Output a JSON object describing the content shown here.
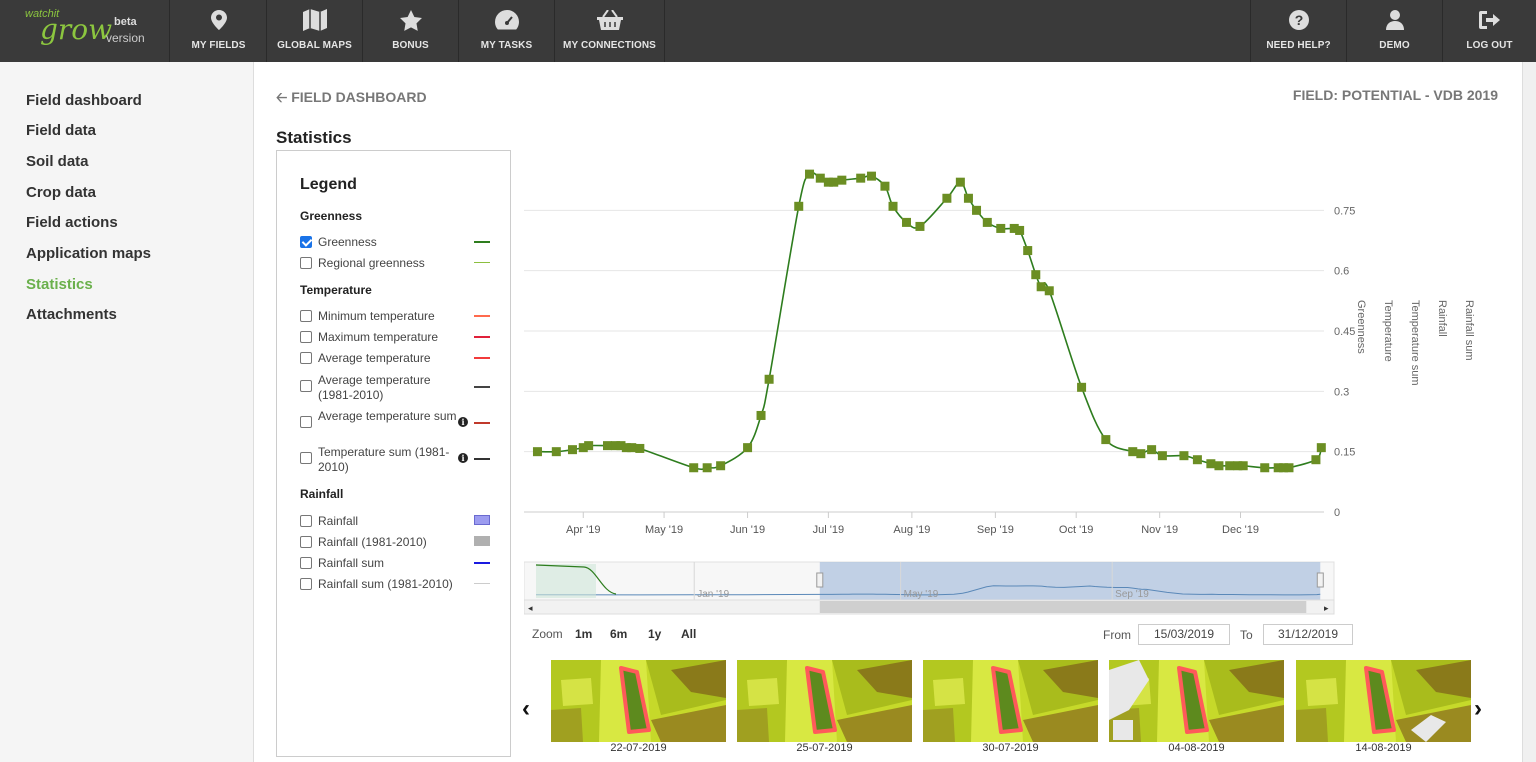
{
  "app": {
    "logo_small": "watchit",
    "logo_big": "grow",
    "beta": "beta",
    "version": "version"
  },
  "topnav": {
    "left": [
      {
        "label": "MY FIELDS",
        "icon": "map-marker-icon"
      },
      {
        "label": "GLOBAL MAPS",
        "icon": "map-icon"
      },
      {
        "label": "BONUS",
        "icon": "star-icon"
      },
      {
        "label": "MY TASKS",
        "icon": "dashboard-icon"
      },
      {
        "label": "MY CONNECTIONS",
        "icon": "basket-icon"
      }
    ],
    "right": [
      {
        "label": "NEED HELP?",
        "icon": "question-icon"
      },
      {
        "label": "DEMO",
        "icon": "user-icon"
      },
      {
        "label": "LOG OUT",
        "icon": "logout-icon"
      }
    ]
  },
  "sidebar": {
    "items": [
      {
        "label": "Field dashboard",
        "active": false
      },
      {
        "label": "Field data",
        "active": false
      },
      {
        "label": "Soil data",
        "active": false
      },
      {
        "label": "Crop data",
        "active": false
      },
      {
        "label": "Field actions",
        "active": false
      },
      {
        "label": "Application maps",
        "active": false
      },
      {
        "label": "Statistics",
        "active": true
      },
      {
        "label": "Attachments",
        "active": false
      }
    ]
  },
  "header": {
    "back_label": "FIELD DASHBOARD",
    "field": "FIELD: POTENTIAL - VDB 2019"
  },
  "stats_title": "Statistics",
  "legend": {
    "title": "Legend",
    "groups": [
      {
        "title": "Greenness",
        "items": [
          {
            "label": "Greenness",
            "checked": true,
            "color": "#2e7d1e"
          },
          {
            "label": "Regional greenness",
            "checked": false,
            "color": "#8cbf3f"
          }
        ]
      },
      {
        "title": "Temperature",
        "items": [
          {
            "label": "Minimum temperature",
            "checked": false,
            "color": "#ff6a4d"
          },
          {
            "label": "Maximum temperature",
            "checked": false,
            "color": "#e0203a"
          },
          {
            "label": "Average temperature",
            "checked": false,
            "color": "#f23b3b"
          },
          {
            "label": "Average temperature (1981-2010)",
            "checked": false,
            "color": "#444444"
          },
          {
            "label": "Average temperature sum",
            "checked": false,
            "color": "#c0392b",
            "info": true
          },
          {
            "label": "Temperature sum (1981-2010)",
            "checked": false,
            "color": "#333333",
            "info": true
          }
        ]
      },
      {
        "title": "Rainfall",
        "items": [
          {
            "label": "Rainfall",
            "checked": false,
            "color": "#9c9cf0"
          },
          {
            "label": "Rainfall (1981-2010)",
            "checked": false,
            "color": "#b0b0b0"
          },
          {
            "label": "Rainfall sum",
            "checked": false,
            "color": "#1a1ae0"
          },
          {
            "label": "Rainfall sum (1981-2010)",
            "checked": false,
            "color": "#cccccc"
          }
        ]
      }
    ]
  },
  "chart_data": {
    "type": "line",
    "title": "",
    "xlabel": "",
    "x_ticks": [
      "Apr '19",
      "May '19",
      "Jun '19",
      "Jul '19",
      "Aug '19",
      "Sep '19",
      "Oct '19",
      "Nov '19",
      "Dec '19"
    ],
    "y_ticks": [
      "0",
      "0.15",
      "0.3",
      "0.45",
      "0.6",
      "0.75"
    ],
    "ylim": [
      0,
      0.9
    ],
    "y_axis_titles": [
      "Greenness",
      "Temperature",
      "Temperature sum",
      "Rainfall",
      "Rainfall sum"
    ],
    "series": [
      {
        "name": "Greenness",
        "color": "#2e7d1e",
        "marker_color": "#6b8e23",
        "x": [
          "2019-03-15",
          "2019-03-22",
          "2019-03-28",
          "2019-04-01",
          "2019-04-03",
          "2019-04-10",
          "2019-04-13",
          "2019-04-15",
          "2019-04-17",
          "2019-04-19",
          "2019-04-22",
          "2019-05-12",
          "2019-05-17",
          "2019-05-22",
          "2019-06-01",
          "2019-06-06",
          "2019-06-09",
          "2019-06-20",
          "2019-06-24",
          "2019-06-28",
          "2019-07-01",
          "2019-07-03",
          "2019-07-06",
          "2019-07-13",
          "2019-07-17",
          "2019-07-22",
          "2019-07-25",
          "2019-07-30",
          "2019-08-04",
          "2019-08-14",
          "2019-08-19",
          "2019-08-22",
          "2019-08-25",
          "2019-08-29",
          "2019-09-03",
          "2019-09-08",
          "2019-09-10",
          "2019-09-13",
          "2019-09-16",
          "2019-09-18",
          "2019-09-21",
          "2019-10-03",
          "2019-10-12",
          "2019-10-22",
          "2019-10-25",
          "2019-10-29",
          "2019-11-02",
          "2019-11-10",
          "2019-11-15",
          "2019-11-20",
          "2019-11-23",
          "2019-11-27",
          "2019-11-30",
          "2019-12-02",
          "2019-12-10",
          "2019-12-15",
          "2019-12-17",
          "2019-12-19",
          "2019-12-29",
          "2019-12-31"
        ],
        "y": [
          0.15,
          0.15,
          0.155,
          0.16,
          0.165,
          0.165,
          0.165,
          0.165,
          0.16,
          0.16,
          0.158,
          0.11,
          0.11,
          0.115,
          0.16,
          0.24,
          0.33,
          0.76,
          0.84,
          0.83,
          0.82,
          0.82,
          0.825,
          0.83,
          0.835,
          0.81,
          0.76,
          0.72,
          0.71,
          0.78,
          0.82,
          0.78,
          0.75,
          0.72,
          0.705,
          0.705,
          0.7,
          0.65,
          0.59,
          0.56,
          0.55,
          0.31,
          0.18,
          0.15,
          0.145,
          0.155,
          0.14,
          0.14,
          0.13,
          0.12,
          0.115,
          0.115,
          0.115,
          0.115,
          0.11,
          0.11,
          0.11,
          0.11,
          0.13,
          0.16
        ],
        "markers": true
      }
    ],
    "navigator": {
      "x_ticks": [
        "Jan '19",
        "May '19",
        "Sep '19"
      ]
    }
  },
  "zoom": {
    "label": "Zoom",
    "buttons": [
      "1m",
      "6m",
      "1y",
      "All"
    ],
    "from_label": "From",
    "from": "15/03/2019",
    "to_label": "To",
    "to": "31/12/2019"
  },
  "thumbnails": [
    {
      "date": "22-07-2019"
    },
    {
      "date": "25-07-2019"
    },
    {
      "date": "30-07-2019"
    },
    {
      "date": "04-08-2019"
    },
    {
      "date": "14-08-2019"
    }
  ],
  "colors": {
    "accent_green": "#6ab04c",
    "topbar": "#3a3a3a",
    "navigator_fill": "#b3c6e0"
  }
}
